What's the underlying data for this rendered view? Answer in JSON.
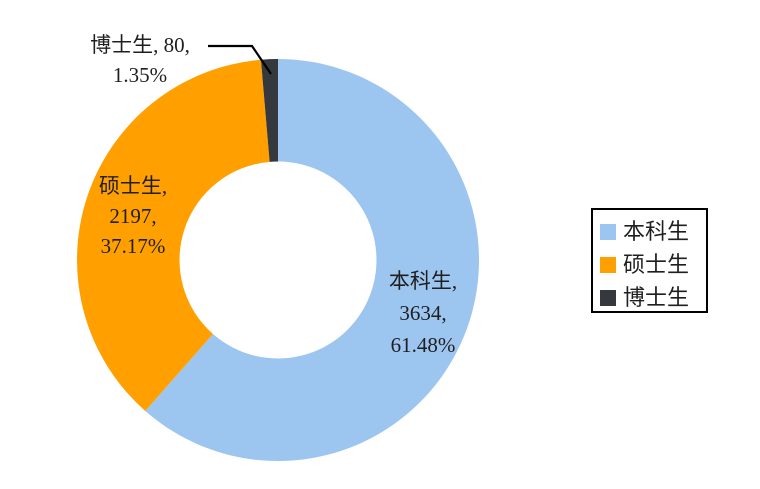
{
  "chart_data": {
    "type": "donut",
    "title": "",
    "categories": [
      "本科生",
      "硕士生",
      "博士生"
    ],
    "values": [
      3634,
      2197,
      80
    ],
    "percent_labels": [
      "61.48%",
      "37.17%",
      "1.35%"
    ],
    "colors": [
      "#9CC5F0",
      "#FFA000",
      "#35393D"
    ],
    "keys": [
      "bachelor",
      "master",
      "doctor"
    ],
    "start_angle_deg": 0,
    "direction": "clockwise",
    "hole_ratio": 0.49,
    "hole_color": "#FFFFFF",
    "background": "#FFFFFF",
    "legend_position": "right",
    "legend_border_color": "#000000",
    "legend_items": [
      {
        "label": "本科生",
        "color": "#9CC5F0"
      },
      {
        "label": "硕士生",
        "color": "#FFA000"
      },
      {
        "label": "博士生",
        "color": "#35393D"
      }
    ]
  },
  "labels": {
    "bachelor": {
      "lines": [
        "本科生,",
        "3634,",
        "61.48%"
      ]
    },
    "master": {
      "lines": [
        "硕士生,",
        "2197,",
        "37.17%"
      ]
    },
    "doctor": {
      "lines": [
        "博士生, 80,",
        "1.35%"
      ]
    }
  }
}
